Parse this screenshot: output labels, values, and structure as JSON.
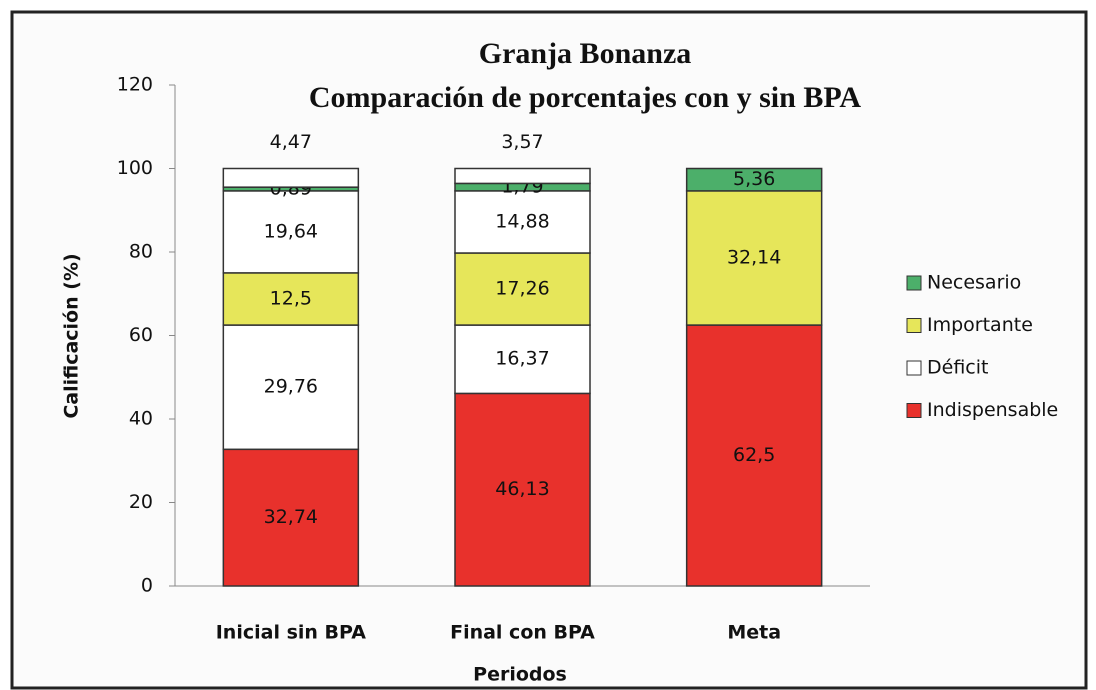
{
  "chart_data": {
    "type": "stacked_bar",
    "title": "Granja Bonanza",
    "subtitle": "Comparación de porcentajes con y sin BPA",
    "ylabel": "Calificación (%)",
    "xlabel": "Periodos",
    "categories": [
      "Inicial sin BPA",
      "Final con BPA",
      "Meta"
    ],
    "series": [
      {
        "name": "Indispensable",
        "color": "#e8312c",
        "values": [
          32.74,
          46.13,
          62.5
        ],
        "value_labels": [
          "32,74",
          "46,13",
          "62,5"
        ]
      },
      {
        "name": "Déficit",
        "color": "#ffffff",
        "values": [
          29.76,
          16.37,
          null
        ],
        "value_labels": [
          "29,76",
          "16,37",
          null
        ]
      },
      {
        "name": "Importante",
        "color": "#e6e65a",
        "values": [
          12.5,
          17.26,
          32.14
        ],
        "value_labels": [
          "12,5",
          "17,26",
          "32,14"
        ]
      },
      {
        "name": "Déficit",
        "color": "#ffffff",
        "values": [
          19.64,
          14.88,
          null
        ],
        "value_labels": [
          "19,64",
          "14,88",
          null
        ]
      },
      {
        "name": "Necesario",
        "color": "#4caf6a",
        "values": [
          0.89,
          1.79,
          5.36
        ],
        "value_labels": [
          "0,89",
          "1,79",
          "5,36"
        ]
      },
      {
        "name": "Déficit",
        "color": "#ffffff",
        "values": [
          4.47,
          3.57,
          null
        ],
        "value_labels": [
          "4,47",
          "3,57",
          null
        ]
      }
    ],
    "legend_order": [
      "Necesario",
      "Importante",
      "Déficit",
      "Indispensable"
    ],
    "ylim": [
      0,
      120
    ],
    "yticks": [
      0,
      20,
      40,
      60,
      80,
      100,
      120
    ],
    "grid": false
  }
}
